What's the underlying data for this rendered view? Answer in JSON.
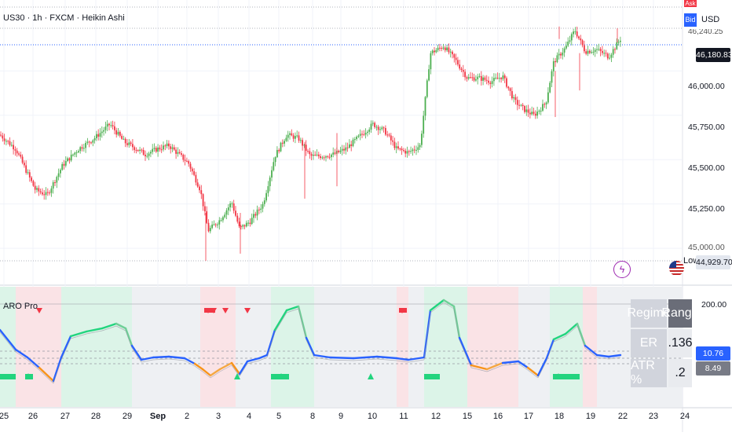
{
  "header": {
    "title": "US30 · 1h · FXCM · Heikin Ashi",
    "currency": "USD",
    "ask_label": "Ask",
    "bid_label": "Bid"
  },
  "price_axis": {
    "ticks": [
      "46,000.00",
      "45,750.00",
      "45,500.00",
      "45,250.00",
      "45,000.00"
    ],
    "top_cut": "46,240.25",
    "current": "46,180.83",
    "low": "44,929.70",
    "low_label": "Low"
  },
  "indicator": {
    "name": "ARO Pro",
    "axis_top": "200.00",
    "value_blue": "10.76",
    "value_gray": "8.49"
  },
  "regime_table": {
    "header_left": "Regime",
    "header_right": "Range",
    "row1_label": "ER",
    "row1_value": ".136",
    "row2_label": "ATR %",
    "row2_value": ".2"
  },
  "x_axis": {
    "labels": [
      "25",
      "26",
      "27",
      "28",
      "29",
      "Sep",
      "2",
      "3",
      "4",
      "5",
      "8",
      "9",
      "10",
      "11",
      "12",
      "15",
      "16",
      "17",
      "18",
      "19",
      "22",
      "23",
      "24"
    ]
  },
  "colors": {
    "up": "#4caf50",
    "down": "#f23645",
    "osc_green": "#22d47e",
    "osc_blue": "#2962ff",
    "osc_orange": "#f7931a",
    "bg_green": "#d7f5e5",
    "bg_red": "#fde0e2"
  },
  "chart_data": {
    "type": "line",
    "title": "US30 · 1h · FXCM · Heikin Ashi",
    "x": [
      "25",
      "26",
      "27",
      "28",
      "29",
      "Sep",
      "2",
      "3",
      "4",
      "5",
      "8",
      "9",
      "10",
      "11",
      "12",
      "15",
      "16",
      "17",
      "18",
      "19",
      "22"
    ],
    "series": [
      {
        "name": "US30",
        "values": [
          45640,
          45350,
          45580,
          45680,
          45560,
          45540,
          45100,
          45300,
          45120,
          45690,
          45450,
          45560,
          45680,
          45530,
          46130,
          45880,
          45900,
          45720,
          46100,
          46180,
          46181
        ]
      }
    ],
    "ylim": [
      44929.7,
      46240.25
    ],
    "current_price": 46180.83,
    "low": 44929.7,
    "indicator_name": "ARO Pro",
    "indicator_top": 200.0,
    "indicator_values": [
      10.76,
      8.49
    ],
    "regime": "Range",
    "er": 0.136,
    "atr_pct": 0.2,
    "grid": true
  }
}
